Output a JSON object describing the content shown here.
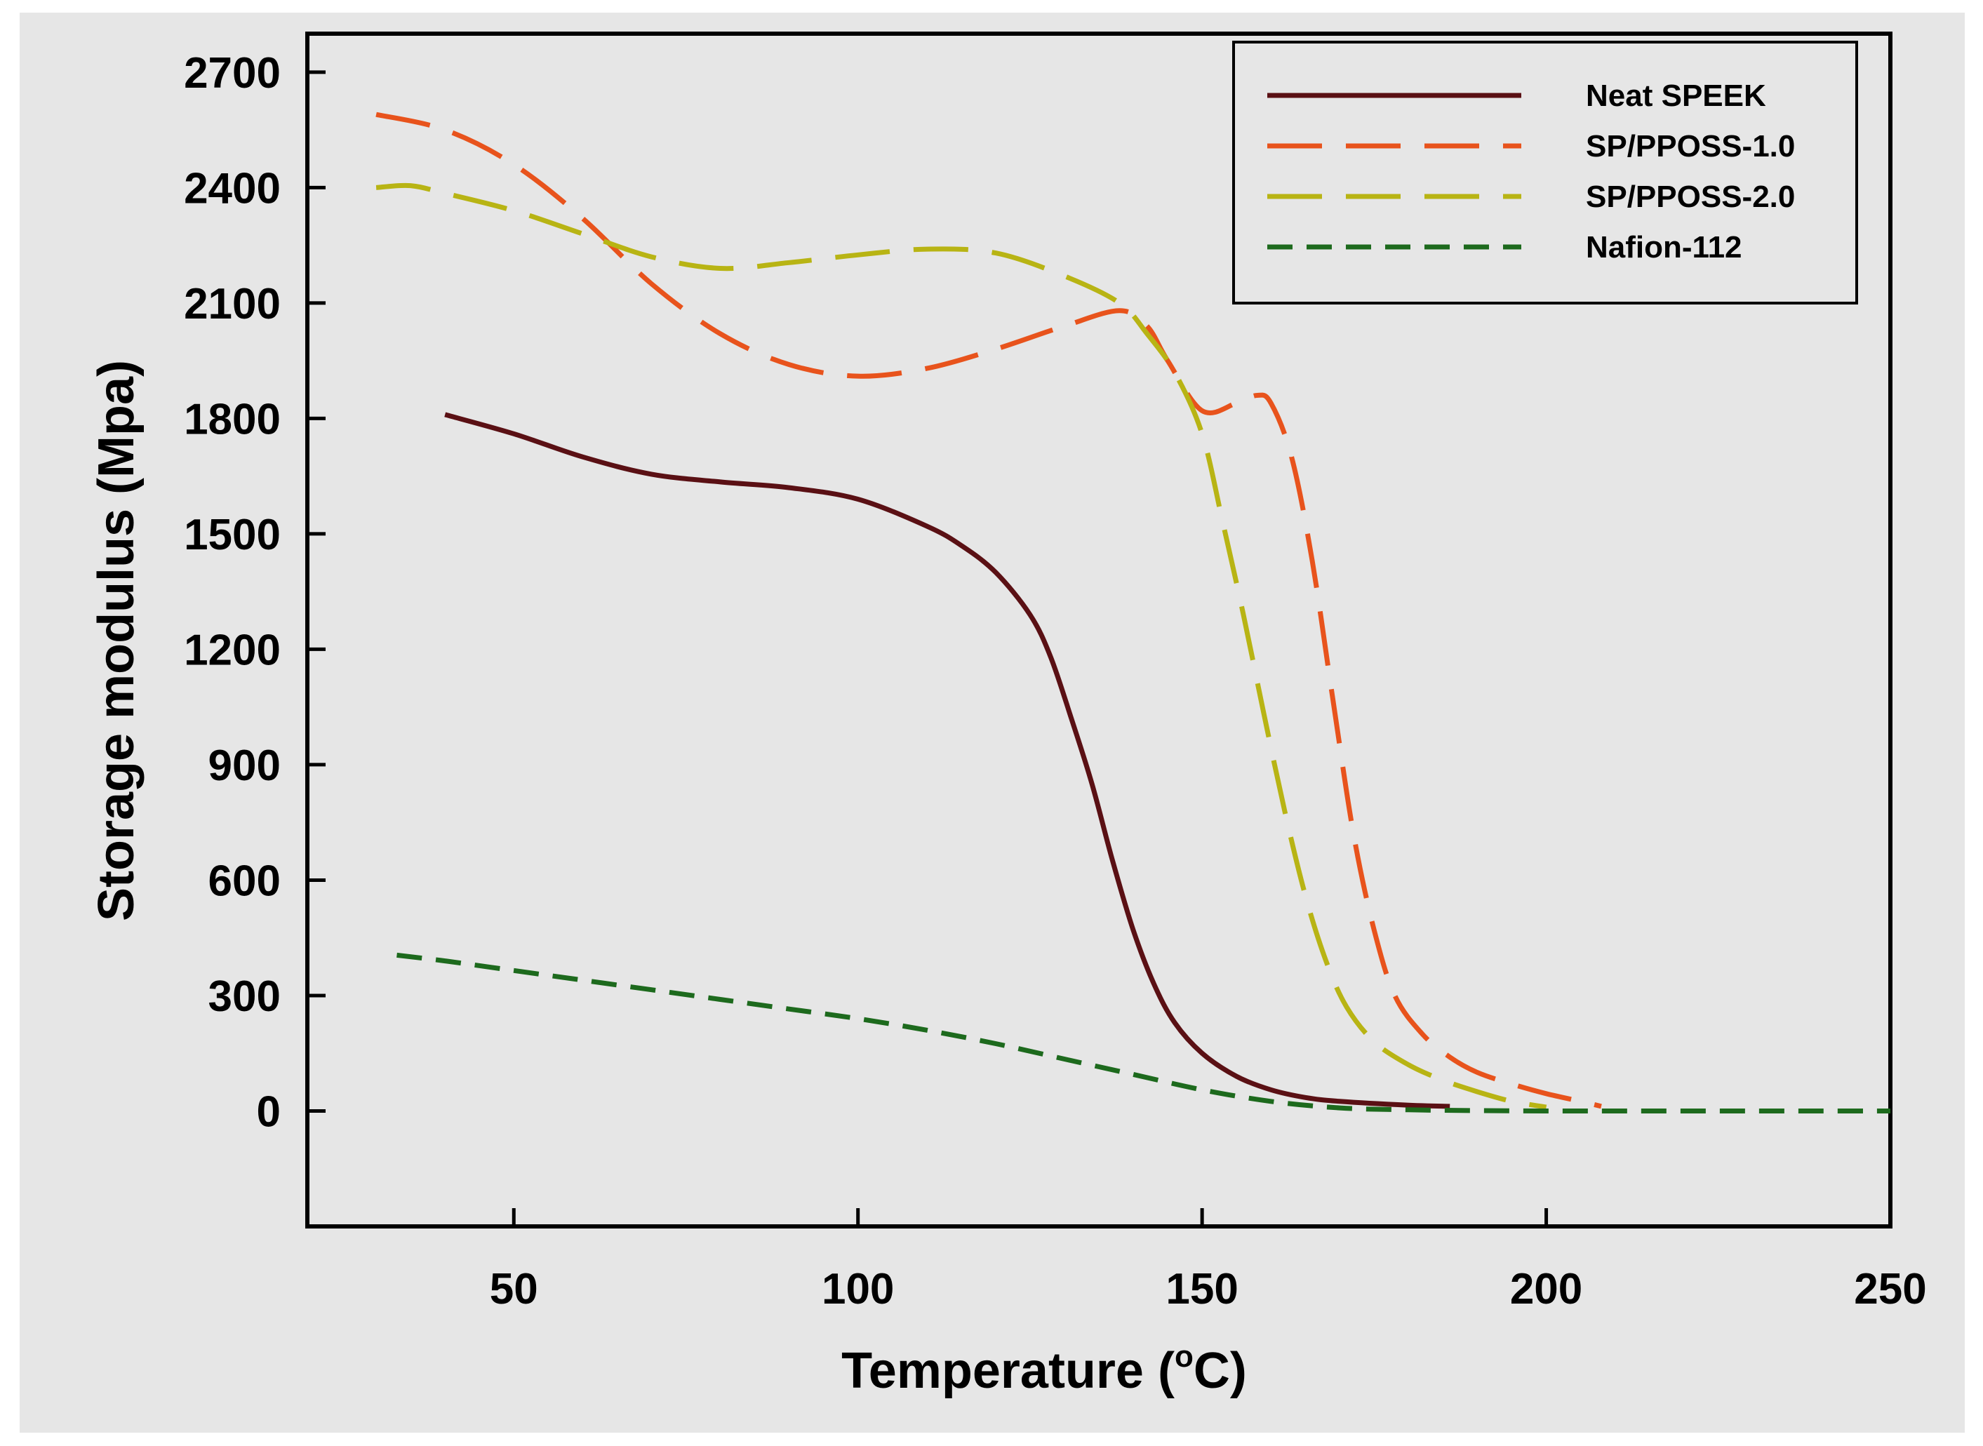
{
  "chart_data": {
    "type": "line",
    "title": "",
    "xlabel": "Temperature (°C)",
    "xlabel_parts": {
      "main": "Temperature (",
      "sup": "o",
      "unit": "C)"
    },
    "ylabel": "Storage modulus (Mpa)",
    "xlim": [
      20,
      250
    ],
    "ylim": [
      -300,
      2800
    ],
    "x_ticks": [
      50,
      100,
      150,
      200,
      250
    ],
    "y_ticks": [
      0,
      300,
      600,
      900,
      1200,
      1500,
      1800,
      2100,
      2400,
      2700
    ],
    "grid": false,
    "legend_position": "top-right",
    "series": [
      {
        "name": "Neat SPEEK",
        "color": "#5a1014",
        "style": "solid",
        "x": [
          40,
          50,
          60,
          70,
          80,
          90,
          100,
          110,
          115,
          120,
          125,
          128,
          131,
          134,
          137,
          140,
          143,
          146,
          150,
          155,
          160,
          165,
          170,
          180,
          186
        ],
        "y": [
          1810,
          1760,
          1700,
          1655,
          1635,
          1620,
          1590,
          1520,
          1470,
          1400,
          1290,
          1180,
          1020,
          850,
          650,
          470,
          330,
          230,
          150,
          90,
          55,
          35,
          25,
          15,
          12
        ]
      },
      {
        "name": "SP/PPOSS-1.0",
        "color": "#e8531c",
        "style": "long-dash",
        "x": [
          30,
          40,
          50,
          60,
          70,
          80,
          90,
          100,
          110,
          120,
          130,
          138,
          142,
          145,
          150,
          155,
          158,
          160,
          163,
          166,
          169,
          172,
          175,
          178,
          182,
          186,
          190,
          195,
          200,
          205,
          208
        ],
        "y": [
          2590,
          2550,
          2460,
          2320,
          2150,
          2020,
          1940,
          1910,
          1930,
          1980,
          2040,
          2080,
          2040,
          1950,
          1820,
          1840,
          1860,
          1840,
          1700,
          1430,
          1070,
          720,
          470,
          300,
          200,
          140,
          100,
          70,
          45,
          25,
          12
        ]
      },
      {
        "name": "SP/PPOSS-2.0",
        "color": "#b8b414",
        "style": "long-dash",
        "x": [
          30,
          35,
          40,
          50,
          60,
          70,
          80,
          90,
          100,
          110,
          120,
          130,
          138,
          142,
          146,
          150,
          153,
          156,
          159,
          162,
          165,
          168,
          171,
          175,
          180,
          185,
          190,
          195,
          200
        ],
        "y": [
          2400,
          2405,
          2385,
          2340,
          2280,
          2220,
          2190,
          2205,
          2225,
          2240,
          2230,
          2170,
          2100,
          2020,
          1920,
          1760,
          1530,
          1290,
          1030,
          780,
          560,
          390,
          270,
          180,
          120,
          80,
          50,
          25,
          10
        ]
      },
      {
        "name": "Nafion-112",
        "color": "#1d6a1d",
        "style": "short-dash",
        "x": [
          33,
          40,
          50,
          60,
          70,
          80,
          90,
          100,
          110,
          120,
          130,
          140,
          150,
          160,
          170,
          180,
          190,
          200,
          210,
          220,
          230,
          240,
          250
        ],
        "y": [
          405,
          390,
          365,
          340,
          315,
          290,
          265,
          240,
          210,
          175,
          135,
          95,
          55,
          25,
          8,
          3,
          1,
          0,
          0,
          0,
          0,
          0,
          0
        ]
      }
    ]
  }
}
